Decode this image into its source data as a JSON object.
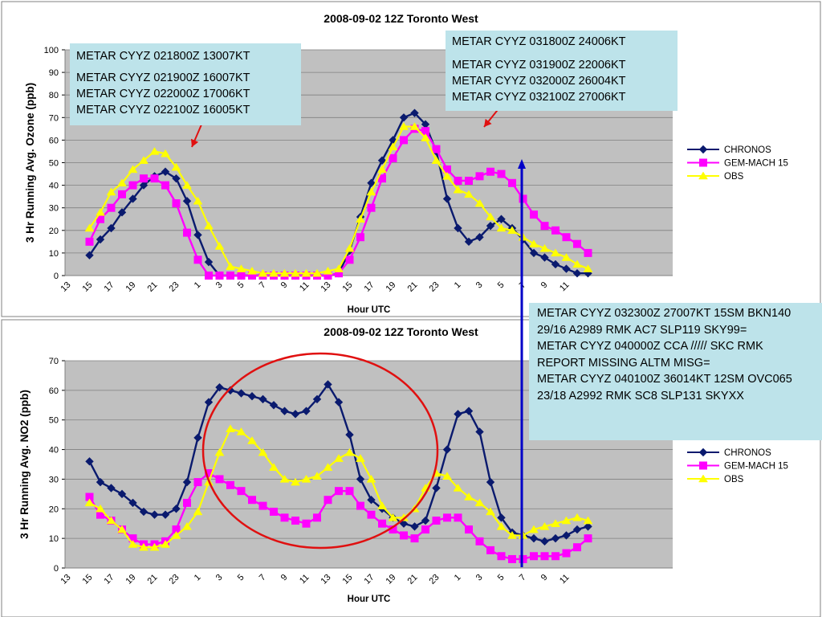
{
  "chart_data": [
    {
      "type": "line",
      "title": "2008-09-02 12Z Toronto West",
      "xlabel": "Hour UTC",
      "ylabel": "3 Hr Running Avg. Ozone (ppb)",
      "ylim": [
        0,
        100
      ],
      "yticks": [
        "0",
        "10",
        "20",
        "30",
        "40",
        "50",
        "60",
        "70",
        "80",
        "90",
        "100"
      ],
      "xticks": [
        "13",
        "15",
        "17",
        "19",
        "21",
        "23",
        "1",
        "3",
        "5",
        "7",
        "9",
        "11",
        "13",
        "15",
        "17",
        "19",
        "21",
        "23",
        "1",
        "3",
        "5",
        "7",
        "9",
        "11"
      ],
      "grid": true,
      "legend_position": "right",
      "series": [
        {
          "name": "CHRONOS",
          "color": "#0a1a6e",
          "marker": "diamond",
          "values": [
            9,
            16,
            21,
            28,
            34,
            40,
            44,
            46,
            43,
            33,
            18,
            6,
            0,
            0,
            0,
            0,
            0,
            0,
            0,
            0,
            0,
            0,
            0,
            1,
            11,
            26,
            41,
            51,
            60,
            70,
            72,
            67,
            55,
            34,
            21,
            15,
            17,
            22,
            25,
            21,
            16,
            10,
            8,
            5,
            3,
            1,
            1
          ]
        },
        {
          "name": "GEM-MACH 15",
          "color": "#ff00ff",
          "marker": "square",
          "values": [
            15,
            25,
            30,
            36,
            40,
            43,
            43,
            40,
            32,
            19,
            7,
            0,
            0,
            0,
            0,
            0,
            0,
            0,
            0,
            0,
            0,
            0,
            0,
            1,
            7,
            17,
            30,
            43,
            52,
            60,
            65,
            64,
            56,
            47,
            42,
            42,
            44,
            46,
            45,
            41,
            34,
            27,
            22,
            20,
            17,
            14,
            10
          ]
        },
        {
          "name": "OBS",
          "color": "#ffff00",
          "marker": "triangle",
          "values": [
            21,
            28,
            37,
            41,
            47,
            51,
            55,
            54,
            48,
            40,
            33,
            22,
            13,
            4,
            3,
            2,
            1,
            1,
            1,
            1,
            1,
            1,
            2,
            3,
            12,
            25,
            37,
            47,
            57,
            66,
            66,
            61,
            51,
            44,
            38,
            36,
            32,
            26,
            21,
            20,
            17,
            14,
            12,
            10,
            8,
            5,
            3
          ]
        }
      ]
    },
    {
      "type": "line",
      "title": "2008-09-02 12Z Toronto West",
      "xlabel": "Hour UTC",
      "ylabel": "3 Hr Running Avg. NO2 (ppb)",
      "ylim": [
        0,
        70
      ],
      "yticks": [
        "0",
        "10",
        "20",
        "30",
        "40",
        "50",
        "60",
        "70"
      ],
      "xticks": [
        "13",
        "15",
        "17",
        "19",
        "21",
        "23",
        "1",
        "3",
        "5",
        "7",
        "9",
        "11",
        "13",
        "15",
        "17",
        "19",
        "21",
        "23",
        "1",
        "3",
        "5",
        "7",
        "9",
        "11"
      ],
      "grid": true,
      "legend_position": "right",
      "series": [
        {
          "name": "CHRONOS",
          "color": "#0a1a6e",
          "marker": "diamond",
          "values": [
            36,
            29,
            27,
            25,
            22,
            19,
            18,
            18,
            20,
            29,
            44,
            56,
            61,
            60,
            59,
            58,
            57,
            55,
            53,
            52,
            53,
            57,
            62,
            56,
            45,
            30,
            23,
            20,
            17,
            15,
            14,
            16,
            27,
            40,
            52,
            53,
            46,
            29,
            17,
            12,
            11,
            10,
            9,
            10,
            11,
            13,
            14
          ]
        },
        {
          "name": "GEM-MACH 15",
          "color": "#ff00ff",
          "marker": "square",
          "values": [
            24,
            18,
            16,
            13,
            10,
            8,
            8,
            9,
            13,
            22,
            29,
            32,
            30,
            28,
            26,
            23,
            21,
            19,
            17,
            16,
            15,
            17,
            23,
            26,
            26,
            21,
            18,
            15,
            13,
            11,
            10,
            13,
            16,
            17,
            17,
            13,
            9,
            6,
            4,
            3,
            3,
            4,
            4,
            4,
            5,
            7,
            10
          ]
        },
        {
          "name": "OBS",
          "color": "#ffff00",
          "marker": "triangle",
          "values": [
            22,
            20,
            16,
            13,
            8,
            7,
            7,
            8,
            11,
            14,
            19,
            29,
            39,
            47,
            46,
            43,
            39,
            34,
            30,
            29,
            30,
            31,
            34,
            37,
            39,
            37,
            30,
            21,
            17,
            17,
            20,
            27,
            32,
            31,
            27,
            24,
            22,
            19,
            14,
            11,
            11,
            13,
            14,
            15,
            16,
            17,
            16
          ]
        }
      ]
    }
  ],
  "annotations": {
    "metar_left": [
      "METAR CYYZ 021800Z 13007KT",
      "METAR CYYZ 021900Z 16007KT",
      "METAR CYYZ 022000Z 17006KT",
      "METAR CYYZ 022100Z 16005KT"
    ],
    "metar_right": [
      "METAR CYYZ 031800Z 24006KT",
      "METAR CYYZ 031900Z 22006KT",
      "METAR CYYZ 032000Z 26004KT",
      "METAR CYYZ 032100Z 27006KT"
    ],
    "metar_bottom": [
      "METAR CYYZ 032300Z 27007KT 15SM BKN140 29/16 A2989 RMK AC7 SLP119 SKY99=",
      "METAR CYYZ 040000Z CCA ///// SKC RMK REPORT MISSING ALTM MISG=",
      "METAR CYYZ 040100Z 36014KT 12SM OVC065 23/18 A2992 RMK SC8 SLP131 SKYXX"
    ]
  },
  "colors": {
    "plot_area": "#c0c0c0",
    "circle": "#e01010",
    "arrow": "#e01010",
    "vertical_line": "#0000c8",
    "note_bg": "#bde3ea"
  }
}
